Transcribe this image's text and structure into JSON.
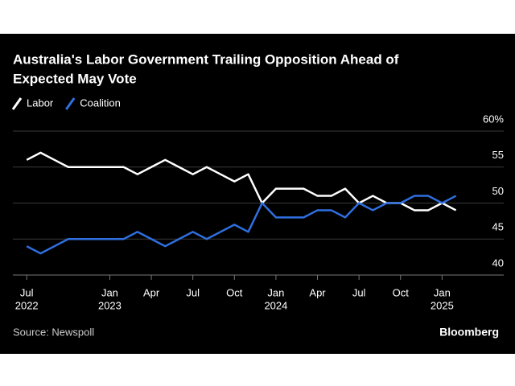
{
  "chart_data": {
    "type": "line",
    "title": [
      "Australia's Labor Government Trailing Opposition Ahead of",
      "Expected May Vote"
    ],
    "source": "Source: Newspoll",
    "brand": "Bloomberg",
    "x": [
      "2022-07",
      "2022-08",
      "2022-09",
      "2022-10",
      "2022-11",
      "2022-12",
      "2023-01",
      "2023-02",
      "2023-03",
      "2023-04",
      "2023-05",
      "2023-06",
      "2023-07",
      "2023-08",
      "2023-09",
      "2023-10",
      "2023-11",
      "2023-12",
      "2024-01",
      "2024-02",
      "2024-03",
      "2024-04",
      "2024-05",
      "2024-06",
      "2024-07",
      "2024-08",
      "2024-09",
      "2024-10",
      "2024-11",
      "2024-12",
      "2025-01",
      "2025-02"
    ],
    "series": [
      {
        "name": "Labor",
        "color": "#ffffff",
        "values": [
          56,
          57,
          56,
          55,
          55,
          55,
          55,
          55,
          54,
          55,
          56,
          55,
          54,
          55,
          54,
          53,
          54,
          50,
          52,
          52,
          52,
          51,
          51,
          52,
          50,
          51,
          50,
          50,
          49,
          49,
          50,
          49
        ]
      },
      {
        "name": "Coalition",
        "color": "#2f6fe0",
        "values": [
          44,
          43,
          44,
          45,
          45,
          45,
          45,
          45,
          46,
          45,
          44,
          45,
          46,
          45,
          46,
          47,
          46,
          50,
          48,
          48,
          48,
          49,
          49,
          48,
          50,
          49,
          50,
          50,
          51,
          51,
          50,
          51
        ]
      }
    ],
    "xlim": [
      "2022-06",
      "2025-04"
    ],
    "xticks": [
      {
        "value": "2022-07",
        "label": "Jul",
        "sublabel": "2022"
      },
      {
        "value": "2023-01",
        "label": "Jan",
        "sublabel": "2023"
      },
      {
        "value": "2023-04",
        "label": "Apr"
      },
      {
        "value": "2023-07",
        "label": "Jul"
      },
      {
        "value": "2023-10",
        "label": "Oct"
      },
      {
        "value": "2024-01",
        "label": "Jan",
        "sublabel": "2024"
      },
      {
        "value": "2024-04",
        "label": "Apr"
      },
      {
        "value": "2024-07",
        "label": "Jul"
      },
      {
        "value": "2024-10",
        "label": "Oct"
      },
      {
        "value": "2025-01",
        "label": "Jan",
        "sublabel": "2025"
      }
    ],
    "ylim": [
      40,
      60
    ],
    "yticks": [
      40,
      45,
      50,
      55,
      {
        "value": 60,
        "label": "60%"
      }
    ],
    "grid": true,
    "legend": "top-left"
  }
}
